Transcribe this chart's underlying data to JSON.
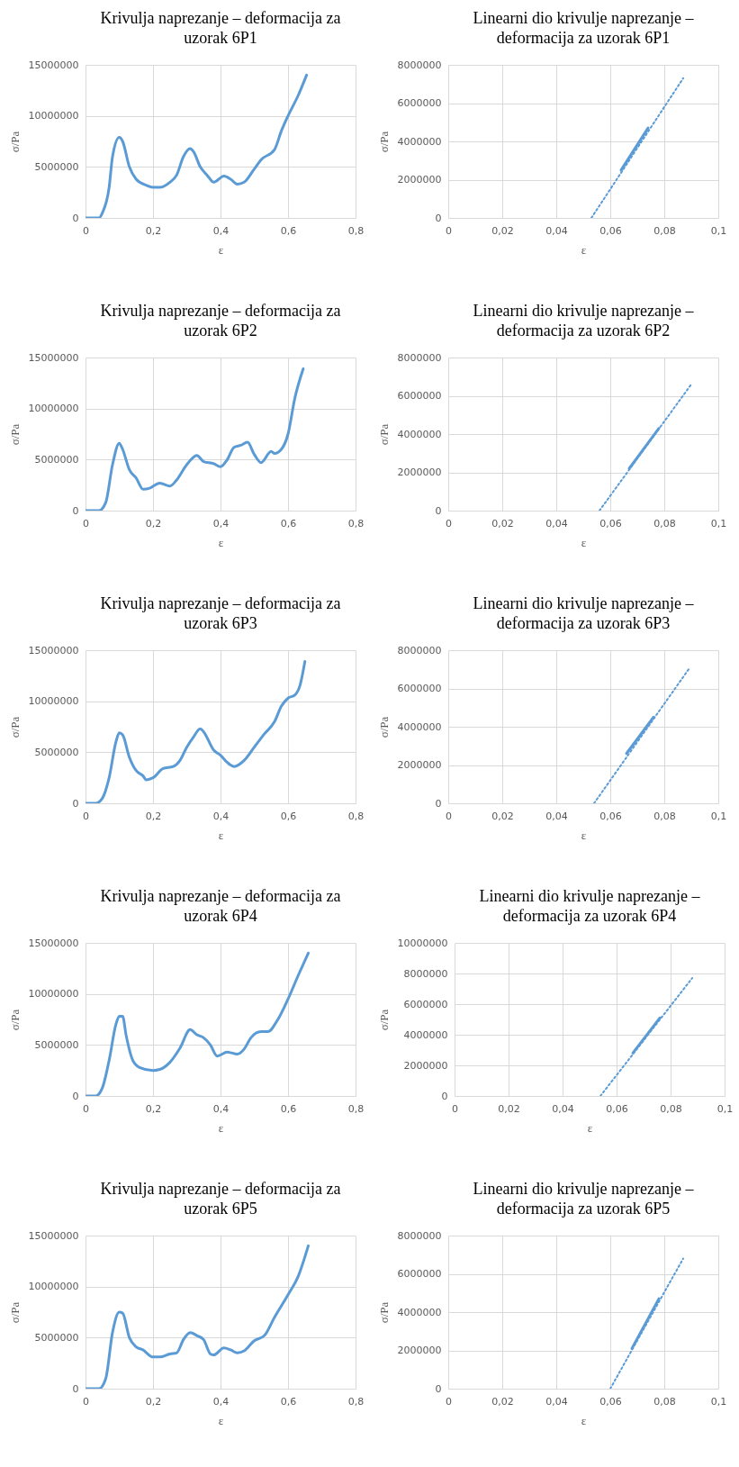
{
  "chart_data": [
    {
      "type": "line",
      "title": "Krivulja naprezanje – deformacija za uzorak 6P1",
      "xlabel": "ε",
      "ylabel": "σ/Pa",
      "grid": true,
      "line_style": "solid",
      "xlim": [
        0,
        0.8
      ],
      "xticks": [
        {
          "value": 0,
          "label": "0"
        },
        {
          "value": 0.2,
          "label": "0,2"
        },
        {
          "value": 0.4,
          "label": "0,4"
        },
        {
          "value": 0.6,
          "label": "0,6"
        },
        {
          "value": 0.8,
          "label": "0,8"
        }
      ],
      "ylim": [
        0,
        15000000
      ],
      "yticks": [
        0,
        5000000,
        10000000,
        15000000
      ],
      "series": [
        {
          "color": "#5b9bd5",
          "x": [
            0,
            0.04,
            0.05,
            0.07,
            0.08,
            0.1,
            0.11,
            0.13,
            0.15,
            0.18,
            0.2,
            0.22,
            0.25,
            0.27,
            0.29,
            0.31,
            0.32,
            0.34,
            0.36,
            0.38,
            0.41,
            0.43,
            0.45,
            0.47,
            0.5,
            0.52,
            0.56,
            0.58,
            0.6,
            0.63,
            0.655
          ],
          "values": [
            0,
            0,
            500000,
            3000000,
            6000000,
            7900000,
            7500000,
            5000000,
            3800000,
            3200000,
            3000000,
            3000000,
            3500000,
            4200000,
            6000000,
            6800000,
            6500000,
            5000000,
            4200000,
            3500000,
            4100000,
            3800000,
            3300000,
            3500000,
            4800000,
            5700000,
            6700000,
            8500000,
            10000000,
            12000000,
            14000000
          ]
        }
      ]
    },
    {
      "type": "line",
      "title": "Linearni dio krivulje naprezanje – deformacija za uzorak 6P1",
      "xlabel": "ε",
      "ylabel": "σ/Pa",
      "grid": true,
      "xlim": [
        0,
        0.1
      ],
      "xticks": [
        {
          "value": 0,
          "label": "0"
        },
        {
          "value": 0.02,
          "label": "0,02"
        },
        {
          "value": 0.04,
          "label": "0,04"
        },
        {
          "value": 0.06,
          "label": "0,06"
        },
        {
          "value": 0.08,
          "label": "0,08"
        },
        {
          "value": 0.1,
          "label": "0,1"
        }
      ],
      "ylim": [
        0,
        8000000
      ],
      "yticks": [
        0,
        2000000,
        4000000,
        6000000,
        8000000
      ],
      "series": [
        {
          "color": "#5b9bd5",
          "line_style": "solid",
          "x": [
            0.064,
            0.074
          ],
          "values": [
            2500000,
            4700000
          ]
        },
        {
          "type": "line",
          "color": "#5b9bd5",
          "line_style": "dotted",
          "x": [
            0.053,
            0.087
          ],
          "values": [
            0,
            7300000
          ]
        }
      ]
    },
    {
      "type": "line",
      "title": "Krivulja naprezanje – deformacija za uzorak 6P2",
      "xlabel": "ε",
      "ylabel": "σ/Pa",
      "grid": true,
      "line_style": "solid",
      "xlim": [
        0,
        0.8
      ],
      "xticks": [
        {
          "value": 0,
          "label": "0"
        },
        {
          "value": 0.2,
          "label": "0,2"
        },
        {
          "value": 0.4,
          "label": "0,4"
        },
        {
          "value": 0.6,
          "label": "0,6"
        },
        {
          "value": 0.8,
          "label": "0,8"
        }
      ],
      "ylim": [
        0,
        15000000
      ],
      "yticks": [
        0,
        5000000,
        10000000,
        15000000
      ],
      "series": [
        {
          "color": "#5b9bd5",
          "x": [
            0,
            0.04,
            0.06,
            0.08,
            0.1,
            0.11,
            0.13,
            0.15,
            0.17,
            0.19,
            0.22,
            0.25,
            0.27,
            0.3,
            0.33,
            0.35,
            0.38,
            0.4,
            0.42,
            0.44,
            0.46,
            0.48,
            0.5,
            0.52,
            0.55,
            0.56,
            0.58,
            0.6,
            0.62,
            0.645
          ],
          "values": [
            0,
            0,
            800000,
            4500000,
            6600000,
            6000000,
            4000000,
            3200000,
            2100000,
            2200000,
            2700000,
            2400000,
            3000000,
            4500000,
            5400000,
            4800000,
            4600000,
            4300000,
            5000000,
            6200000,
            6400000,
            6700000,
            5500000,
            4700000,
            5800000,
            5600000,
            6000000,
            7500000,
            11000000,
            13900000
          ]
        }
      ]
    },
    {
      "type": "line",
      "title": "Linearni dio krivulje naprezanje – deformacija za uzorak 6P2",
      "xlabel": "ε",
      "ylabel": "σ/Pa",
      "grid": true,
      "xlim": [
        0,
        0.1
      ],
      "xticks": [
        {
          "value": 0,
          "label": "0"
        },
        {
          "value": 0.02,
          "label": "0,02"
        },
        {
          "value": 0.04,
          "label": "0,04"
        },
        {
          "value": 0.06,
          "label": "0,06"
        },
        {
          "value": 0.08,
          "label": "0,08"
        },
        {
          "value": 0.1,
          "label": "0,1"
        }
      ],
      "ylim": [
        0,
        8000000
      ],
      "yticks": [
        0,
        2000000,
        4000000,
        6000000,
        8000000
      ],
      "series": [
        {
          "color": "#5b9bd5",
          "line_style": "solid",
          "x": [
            0.067,
            0.078
          ],
          "values": [
            2200000,
            4300000
          ]
        },
        {
          "type": "line",
          "color": "#5b9bd5",
          "line_style": "dotted",
          "x": [
            0.056,
            0.09
          ],
          "values": [
            0,
            6600000
          ]
        }
      ]
    },
    {
      "type": "line",
      "title": "Krivulja naprezanje – deformacija za uzorak 6P3",
      "xlabel": "ε",
      "ylabel": "σ/Pa",
      "grid": true,
      "line_style": "solid",
      "xlim": [
        0,
        0.8
      ],
      "xticks": [
        {
          "value": 0,
          "label": "0"
        },
        {
          "value": 0.2,
          "label": "0,2"
        },
        {
          "value": 0.4,
          "label": "0,4"
        },
        {
          "value": 0.6,
          "label": "0,6"
        },
        {
          "value": 0.8,
          "label": "0,8"
        }
      ],
      "ylim": [
        0,
        15000000
      ],
      "yticks": [
        0,
        5000000,
        10000000,
        15000000
      ],
      "series": [
        {
          "color": "#5b9bd5",
          "x": [
            0,
            0.03,
            0.05,
            0.07,
            0.09,
            0.1,
            0.11,
            0.13,
            0.15,
            0.17,
            0.18,
            0.2,
            0.23,
            0.26,
            0.28,
            0.3,
            0.32,
            0.34,
            0.35,
            0.38,
            0.4,
            0.42,
            0.44,
            0.47,
            0.5,
            0.53,
            0.56,
            0.58,
            0.6,
            0.62,
            0.635,
            0.65
          ],
          "values": [
            0,
            0,
            500000,
            2500000,
            6000000,
            6900000,
            6700000,
            4500000,
            3200000,
            2700000,
            2300000,
            2500000,
            3400000,
            3600000,
            4200000,
            5500000,
            6500000,
            7300000,
            7000000,
            5200000,
            4700000,
            4000000,
            3600000,
            4200000,
            5500000,
            6800000,
            8000000,
            9500000,
            10300000,
            10600000,
            11500000,
            13900000
          ]
        }
      ]
    },
    {
      "type": "line",
      "title": "Linearni dio krivulje naprezanje – deformacija za uzorak 6P3",
      "xlabel": "ε",
      "ylabel": "σ/Pa",
      "grid": true,
      "xlim": [
        0,
        0.1
      ],
      "xticks": [
        {
          "value": 0,
          "label": "0"
        },
        {
          "value": 0.02,
          "label": "0,02"
        },
        {
          "value": 0.04,
          "label": "0,04"
        },
        {
          "value": 0.06,
          "label": "0,06"
        },
        {
          "value": 0.08,
          "label": "0,08"
        },
        {
          "value": 0.1,
          "label": "0,1"
        }
      ],
      "ylim": [
        0,
        8000000
      ],
      "yticks": [
        0,
        2000000,
        4000000,
        6000000,
        8000000
      ],
      "series": [
        {
          "color": "#5b9bd5",
          "line_style": "solid",
          "x": [
            0.066,
            0.076
          ],
          "values": [
            2600000,
            4500000
          ]
        },
        {
          "type": "line",
          "color": "#5b9bd5",
          "line_style": "dotted",
          "x": [
            0.054,
            0.089
          ],
          "values": [
            0,
            7000000
          ]
        }
      ]
    },
    {
      "type": "line",
      "title": "Krivulja naprezanje – deformacija za uzorak 6P4",
      "xlabel": "ε",
      "ylabel": "σ/Pa",
      "grid": true,
      "line_style": "solid",
      "xlim": [
        0,
        0.8
      ],
      "xticks": [
        {
          "value": 0,
          "label": "0"
        },
        {
          "value": 0.2,
          "label": "0,2"
        },
        {
          "value": 0.4,
          "label": "0,4"
        },
        {
          "value": 0.6,
          "label": "0,6"
        },
        {
          "value": 0.8,
          "label": "0,8"
        }
      ],
      "ylim": [
        0,
        15000000
      ],
      "yticks": [
        0,
        5000000,
        10000000,
        15000000
      ],
      "series": [
        {
          "color": "#5b9bd5",
          "x": [
            0,
            0.03,
            0.05,
            0.07,
            0.09,
            0.1,
            0.11,
            0.12,
            0.14,
            0.16,
            0.2,
            0.22,
            0.25,
            0.28,
            0.31,
            0.33,
            0.35,
            0.37,
            0.39,
            0.42,
            0.45,
            0.47,
            0.49,
            0.52,
            0.54,
            0.57,
            0.6,
            0.63,
            0.66
          ],
          "values": [
            0,
            0,
            800000,
            3500000,
            7000000,
            7800000,
            7800000,
            6000000,
            3500000,
            2800000,
            2500000,
            2600000,
            3300000,
            4700000,
            6500000,
            6000000,
            5700000,
            5000000,
            3900000,
            4300000,
            4100000,
            4600000,
            5700000,
            6300000,
            6300000,
            7500000,
            9500000,
            11800000,
            14000000
          ]
        }
      ]
    },
    {
      "type": "line",
      "title": "Linearni dio krivulje naprezanje – deformacija za uzorak 6P4",
      "xlabel": "ε",
      "ylabel": "σ/Pa",
      "grid": true,
      "xlim": [
        0,
        0.1
      ],
      "xticks": [
        {
          "value": 0,
          "label": "0"
        },
        {
          "value": 0.02,
          "label": "0,02"
        },
        {
          "value": 0.04,
          "label": "0,04"
        },
        {
          "value": 0.06,
          "label": "0,06"
        },
        {
          "value": 0.08,
          "label": "0,08"
        },
        {
          "value": 0.1,
          "label": "0,1"
        }
      ],
      "ylim": [
        0,
        10000000
      ],
      "yticks": [
        0,
        2000000,
        4000000,
        6000000,
        8000000,
        10000000
      ],
      "series": [
        {
          "color": "#5b9bd5",
          "line_style": "solid",
          "x": [
            0.066,
            0.076
          ],
          "values": [
            2800000,
            5100000
          ]
        },
        {
          "type": "line",
          "color": "#5b9bd5",
          "line_style": "dotted",
          "x": [
            0.054,
            0.088
          ],
          "values": [
            0,
            7700000
          ]
        }
      ]
    },
    {
      "type": "line",
      "title": "Krivulja naprezanje – deformacija za uzorak 6P5",
      "xlabel": "ε",
      "ylabel": "σ/Pa",
      "grid": true,
      "line_style": "solid",
      "xlim": [
        0,
        0.8
      ],
      "xticks": [
        {
          "value": 0,
          "label": "0"
        },
        {
          "value": 0.2,
          "label": "0,2"
        },
        {
          "value": 0.4,
          "label": "0,4"
        },
        {
          "value": 0.6,
          "label": "0,6"
        },
        {
          "value": 0.8,
          "label": "0,8"
        }
      ],
      "ylim": [
        0,
        15000000
      ],
      "yticks": [
        0,
        5000000,
        10000000,
        15000000
      ],
      "series": [
        {
          "color": "#5b9bd5",
          "x": [
            0,
            0.04,
            0.06,
            0.08,
            0.1,
            0.11,
            0.13,
            0.15,
            0.17,
            0.2,
            0.22,
            0.25,
            0.27,
            0.29,
            0.31,
            0.33,
            0.35,
            0.37,
            0.38,
            0.41,
            0.43,
            0.45,
            0.47,
            0.5,
            0.53,
            0.56,
            0.6,
            0.63,
            0.66
          ],
          "values": [
            0,
            0,
            1000000,
            5500000,
            7500000,
            7400000,
            5000000,
            4100000,
            3800000,
            3100000,
            3100000,
            3400000,
            3500000,
            4800000,
            5500000,
            5200000,
            4800000,
            3400000,
            3300000,
            4000000,
            3800000,
            3500000,
            3700000,
            4700000,
            5200000,
            7000000,
            9200000,
            11000000,
            14000000
          ]
        }
      ]
    },
    {
      "type": "line",
      "title": "Linearni dio krivulje naprezanje – deformacija za uzorak 6P5",
      "xlabel": "ε",
      "ylabel": "σ/Pa",
      "grid": true,
      "xlim": [
        0,
        0.1
      ],
      "xticks": [
        {
          "value": 0,
          "label": "0"
        },
        {
          "value": 0.02,
          "label": "0,02"
        },
        {
          "value": 0.04,
          "label": "0,04"
        },
        {
          "value": 0.06,
          "label": "0,06"
        },
        {
          "value": 0.08,
          "label": "0,08"
        },
        {
          "value": 0.1,
          "label": "0,1"
        }
      ],
      "ylim": [
        0,
        8000000
      ],
      "yticks": [
        0,
        2000000,
        4000000,
        6000000,
        8000000
      ],
      "series": [
        {
          "color": "#5b9bd5",
          "line_style": "solid",
          "x": [
            0.068,
            0.078
          ],
          "values": [
            2100000,
            4700000
          ]
        },
        {
          "type": "line",
          "color": "#5b9bd5",
          "line_style": "dotted",
          "x": [
            0.06,
            0.087
          ],
          "values": [
            0,
            6800000
          ]
        }
      ]
    }
  ]
}
